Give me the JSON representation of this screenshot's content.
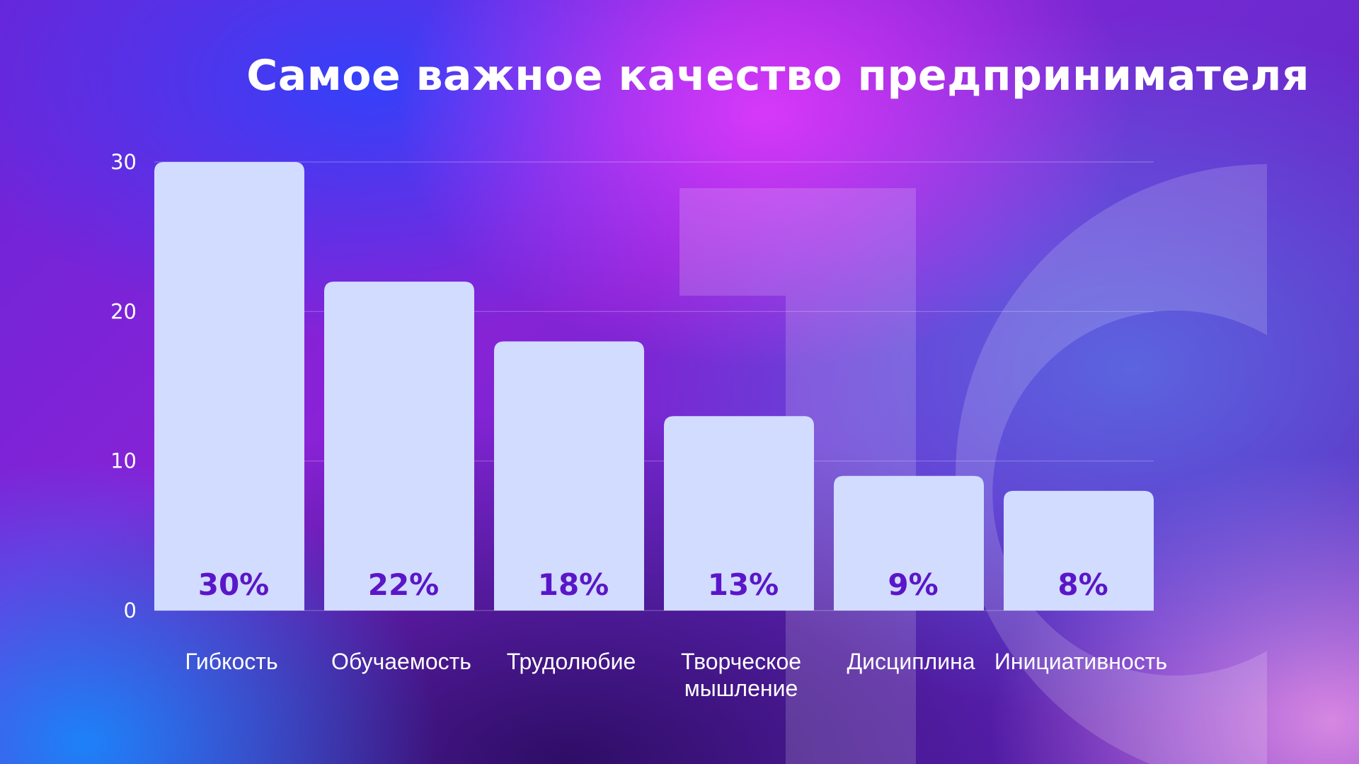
{
  "title": "Самое важное качество предпринимателя",
  "colors": {
    "bar": "#d2dcff",
    "value_label": "#5a16c8",
    "text": "#ffffff",
    "grid": "rgba(255,255,255,0.25)"
  },
  "decor": {
    "watermark": "1С"
  },
  "chart_data": {
    "type": "bar",
    "title": "Самое важное качество предпринимателя",
    "categories": [
      [
        "Гибкость"
      ],
      [
        "Обучаемость"
      ],
      [
        "Трудолюбие"
      ],
      [
        "Творческое",
        "мышление"
      ],
      [
        "Дисциплина"
      ],
      [
        "Инициативность"
      ]
    ],
    "values": [
      30,
      22,
      18,
      13,
      9,
      8
    ],
    "value_labels": [
      "30%",
      "22%",
      "18%",
      "13%",
      "9%",
      "8%"
    ],
    "ylim": [
      0,
      30
    ],
    "yticks": [
      0,
      10,
      20,
      30
    ],
    "grid": true,
    "legend": "none",
    "xlabel": "",
    "ylabel": ""
  }
}
